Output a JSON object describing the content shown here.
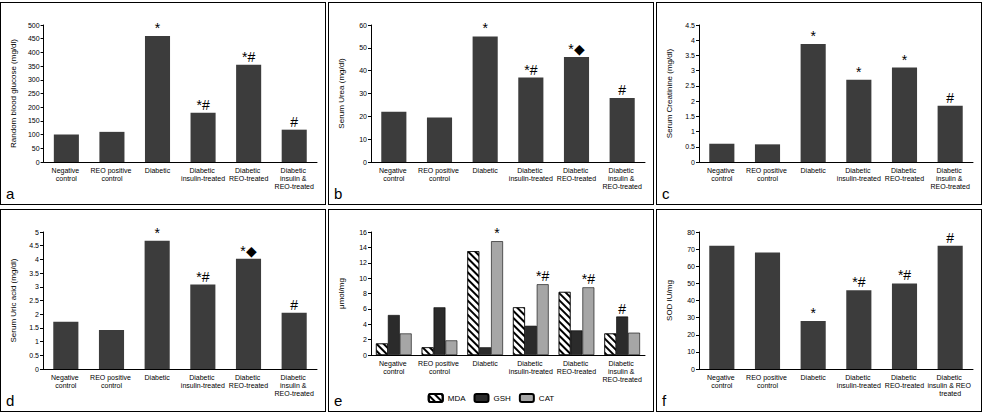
{
  "chart_data": [
    {
      "type": "bar",
      "panel_label": "a",
      "y_label": "Random blood glucose (mg/dl)",
      "categories": [
        "Negative control",
        "REO positive control",
        "Diabetic",
        "Diabetic insulin-treated",
        "Diabetic REO-treated",
        "Diabetic insulin & REO-treated"
      ],
      "values": [
        100,
        110,
        460,
        180,
        355,
        118
      ],
      "color": "#3c3c3c",
      "annotations": [
        null,
        null,
        "*",
        "*#",
        "*#",
        "#"
      ],
      "ylim": [
        0,
        500
      ],
      "yticks": [
        0,
        50,
        100,
        150,
        200,
        250,
        300,
        350,
        400,
        450,
        500
      ],
      "grid": false
    },
    {
      "type": "bar",
      "panel_label": "b",
      "y_label": "Serum Urea (mg/dl)",
      "categories": [
        "Negative control",
        "REO positive control",
        "Diabetic",
        "Diabetic insulin-treated",
        "Diabetic REO-treated",
        "Diabetic insulin & REO-treated"
      ],
      "values": [
        22,
        19.5,
        55,
        37,
        46,
        28
      ],
      "color": "#3c3c3c",
      "annotations": [
        null,
        null,
        "*",
        "*#",
        "*◆",
        "#"
      ],
      "ylim": [
        0,
        60
      ],
      "yticks": [
        0,
        10,
        20,
        30,
        40,
        50,
        60
      ],
      "grid": false
    },
    {
      "type": "bar",
      "panel_label": "c",
      "y_label": "Serum Creatinine (mg/dl)",
      "categories": [
        "Negative control",
        "REO positive control",
        "Diabetic",
        "Diabetic insulin-treated",
        "Diabetic REO-treated",
        "Diabetic insulin & REO-treated"
      ],
      "values": [
        0.6,
        0.58,
        3.88,
        2.7,
        3.1,
        1.85
      ],
      "color": "#3c3c3c",
      "annotations": [
        null,
        null,
        "*",
        "*",
        "*",
        "#"
      ],
      "ylim": [
        0,
        4.5
      ],
      "yticks": [
        0,
        0.5,
        1,
        1.5,
        2,
        2.5,
        3,
        3.5,
        4,
        4.5
      ],
      "grid": false
    },
    {
      "type": "bar",
      "panel_label": "d",
      "y_label": "Serum Uric acid (mg/dl)",
      "categories": [
        "Negative control",
        "REO positive control",
        "Diabetic",
        "Diabetic insulin-treated",
        "Diabetic REO-treated",
        "Diabetic insulin & REO-treated"
      ],
      "values": [
        1.72,
        1.42,
        4.68,
        3.08,
        4.02,
        2.05
      ],
      "color": "#3c3c3c",
      "annotations": [
        null,
        null,
        "*",
        "*#",
        "*◆",
        "#"
      ],
      "ylim": [
        0,
        5
      ],
      "yticks": [
        0,
        0.5,
        1,
        1.5,
        2,
        2.5,
        3,
        3.5,
        4,
        4.5,
        5
      ],
      "grid": false
    },
    {
      "type": "bar",
      "panel_label": "e",
      "y_label": "μmol/mg",
      "categories": [
        "Negative control",
        "REO positive control",
        "Diabetic",
        "Diabetic insulin-treated",
        "Diabetic REO-treated",
        "Diabetic insulin & REO-treated"
      ],
      "series": [
        {
          "name": "MDA",
          "color": "#ffffff",
          "values": [
            1.5,
            1.0,
            13.5,
            6.2,
            8.2,
            2.8
          ]
        },
        {
          "name": "GSH",
          "color": "#2b2b2b",
          "values": [
            5.2,
            6.2,
            1.0,
            3.8,
            3.2,
            5.0
          ]
        },
        {
          "name": "CAT",
          "color": "#a6a6a6",
          "values": [
            2.8,
            1.9,
            14.8,
            9.2,
            8.8,
            2.9
          ]
        }
      ],
      "annotations": [
        null,
        null,
        "*",
        "*#",
        "*#",
        "#"
      ],
      "ylim": [
        0,
        16
      ],
      "yticks": [
        0,
        2,
        4,
        6,
        8,
        10,
        12,
        14,
        16
      ],
      "grid": false,
      "legend": "bottom"
    },
    {
      "type": "bar",
      "panel_label": "f",
      "y_label": "SOD IU/mg",
      "categories": [
        "Negative control",
        "REO positive control",
        "Diabetic",
        "Diabetic insulin-treated",
        "Diabetic REO-treated",
        "Diabetic insulin & REO treated"
      ],
      "values": [
        72,
        68,
        28,
        46,
        50,
        72
      ],
      "color": "#3c3c3c",
      "annotations": [
        null,
        null,
        "*",
        "*#",
        "*#",
        "#"
      ],
      "ylim": [
        0,
        80
      ],
      "yticks": [
        0,
        10,
        20,
        30,
        40,
        50,
        60,
        70,
        80
      ],
      "grid": false
    }
  ]
}
